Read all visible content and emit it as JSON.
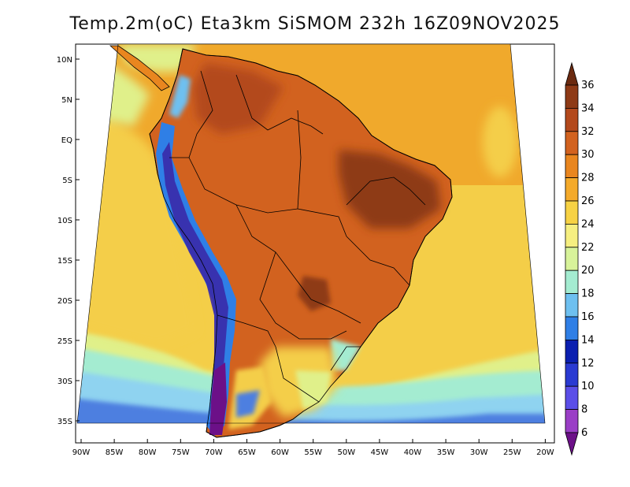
{
  "title": "Temp.2m(oC) Eta3km SiSMOM 232h 16Z09NOV2025",
  "lat_labels": [
    "10N",
    "5N",
    "EQ",
    "5S",
    "10S",
    "15S",
    "20S",
    "25S",
    "30S",
    "35S"
  ],
  "lon_labels": [
    "90W",
    "85W",
    "80W",
    "75W",
    "70W",
    "65W",
    "60W",
    "55W",
    "50W",
    "45W",
    "40W",
    "35W",
    "30W",
    "25W",
    "20W"
  ],
  "colorbar": {
    "labels": [
      "36",
      "34",
      "32",
      "30",
      "28",
      "26",
      "24",
      "22",
      "20",
      "18",
      "16",
      "14",
      "12",
      "10",
      "8",
      "6"
    ],
    "colors": [
      "#6b2a10",
      "#8e3a16",
      "#b3491c",
      "#d2621f",
      "#e9861f",
      "#f4aa2b",
      "#f7d244",
      "#f6ef80",
      "#d8f39a",
      "#a4ecd1",
      "#6ec0f0",
      "#2f7fe6",
      "#0b1fb0",
      "#2a3ad2",
      "#5b4ee8",
      "#9a3ec6",
      "#6c1088"
    ]
  },
  "colors": {
    "ocean_far_south": "#4d7fe0",
    "ocean_south": "#8fd3f0",
    "ocean_mid": "#e0f08a",
    "ocean_warm": "#f4ce48",
    "ocean_tropical": "#f0a92c",
    "land_hot": "#d2621f",
    "land_very_hot": "#8e3a16",
    "andes_cold": "#3a2aa8",
    "andes_peak": "#6c1088",
    "border": "#000000"
  }
}
